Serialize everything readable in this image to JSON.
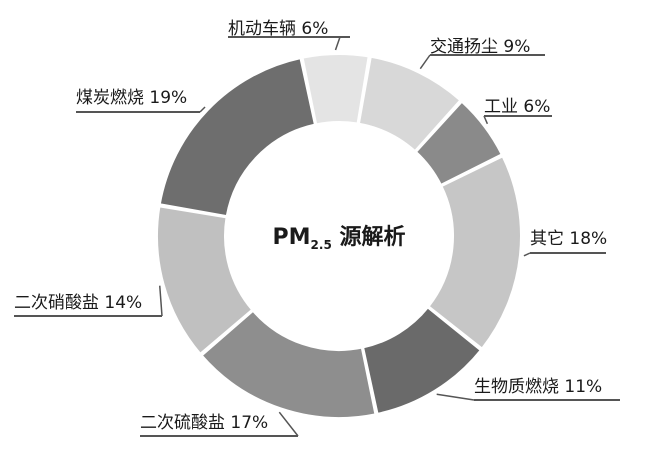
{
  "chart_data": {
    "type": "pie",
    "style": "donut",
    "title": {
      "main": "PM",
      "subscript": "2.5",
      "suffix": " 源解析"
    },
    "legend": "none",
    "slices": [
      {
        "label": "机动车辆",
        "value": 6,
        "value_text": "6%",
        "color": "#e4e4e4"
      },
      {
        "label": "交通扬尘",
        "value": 9,
        "value_text": "9%",
        "color": "#d8d8d8"
      },
      {
        "label": "工业",
        "value": 6,
        "value_text": "6%",
        "color": "#8a8a8a"
      },
      {
        "label": "其它",
        "value": 18,
        "value_text": "18%",
        "color": "#c6c6c6"
      },
      {
        "label": "生物质燃烧",
        "value": 11,
        "value_text": "11%",
        "color": "#6a6a6a"
      },
      {
        "label": "二次硫酸盐",
        "value": 17,
        "value_text": "17%",
        "color": "#8e8e8e"
      },
      {
        "label": "二次硝酸盐",
        "value": 14,
        "value_text": "14%",
        "color": "#c0c0c0"
      },
      {
        "label": "煤炭燃烧",
        "value": 19,
        "value_text": "19%",
        "color": "#6e6e6e"
      }
    ]
  }
}
